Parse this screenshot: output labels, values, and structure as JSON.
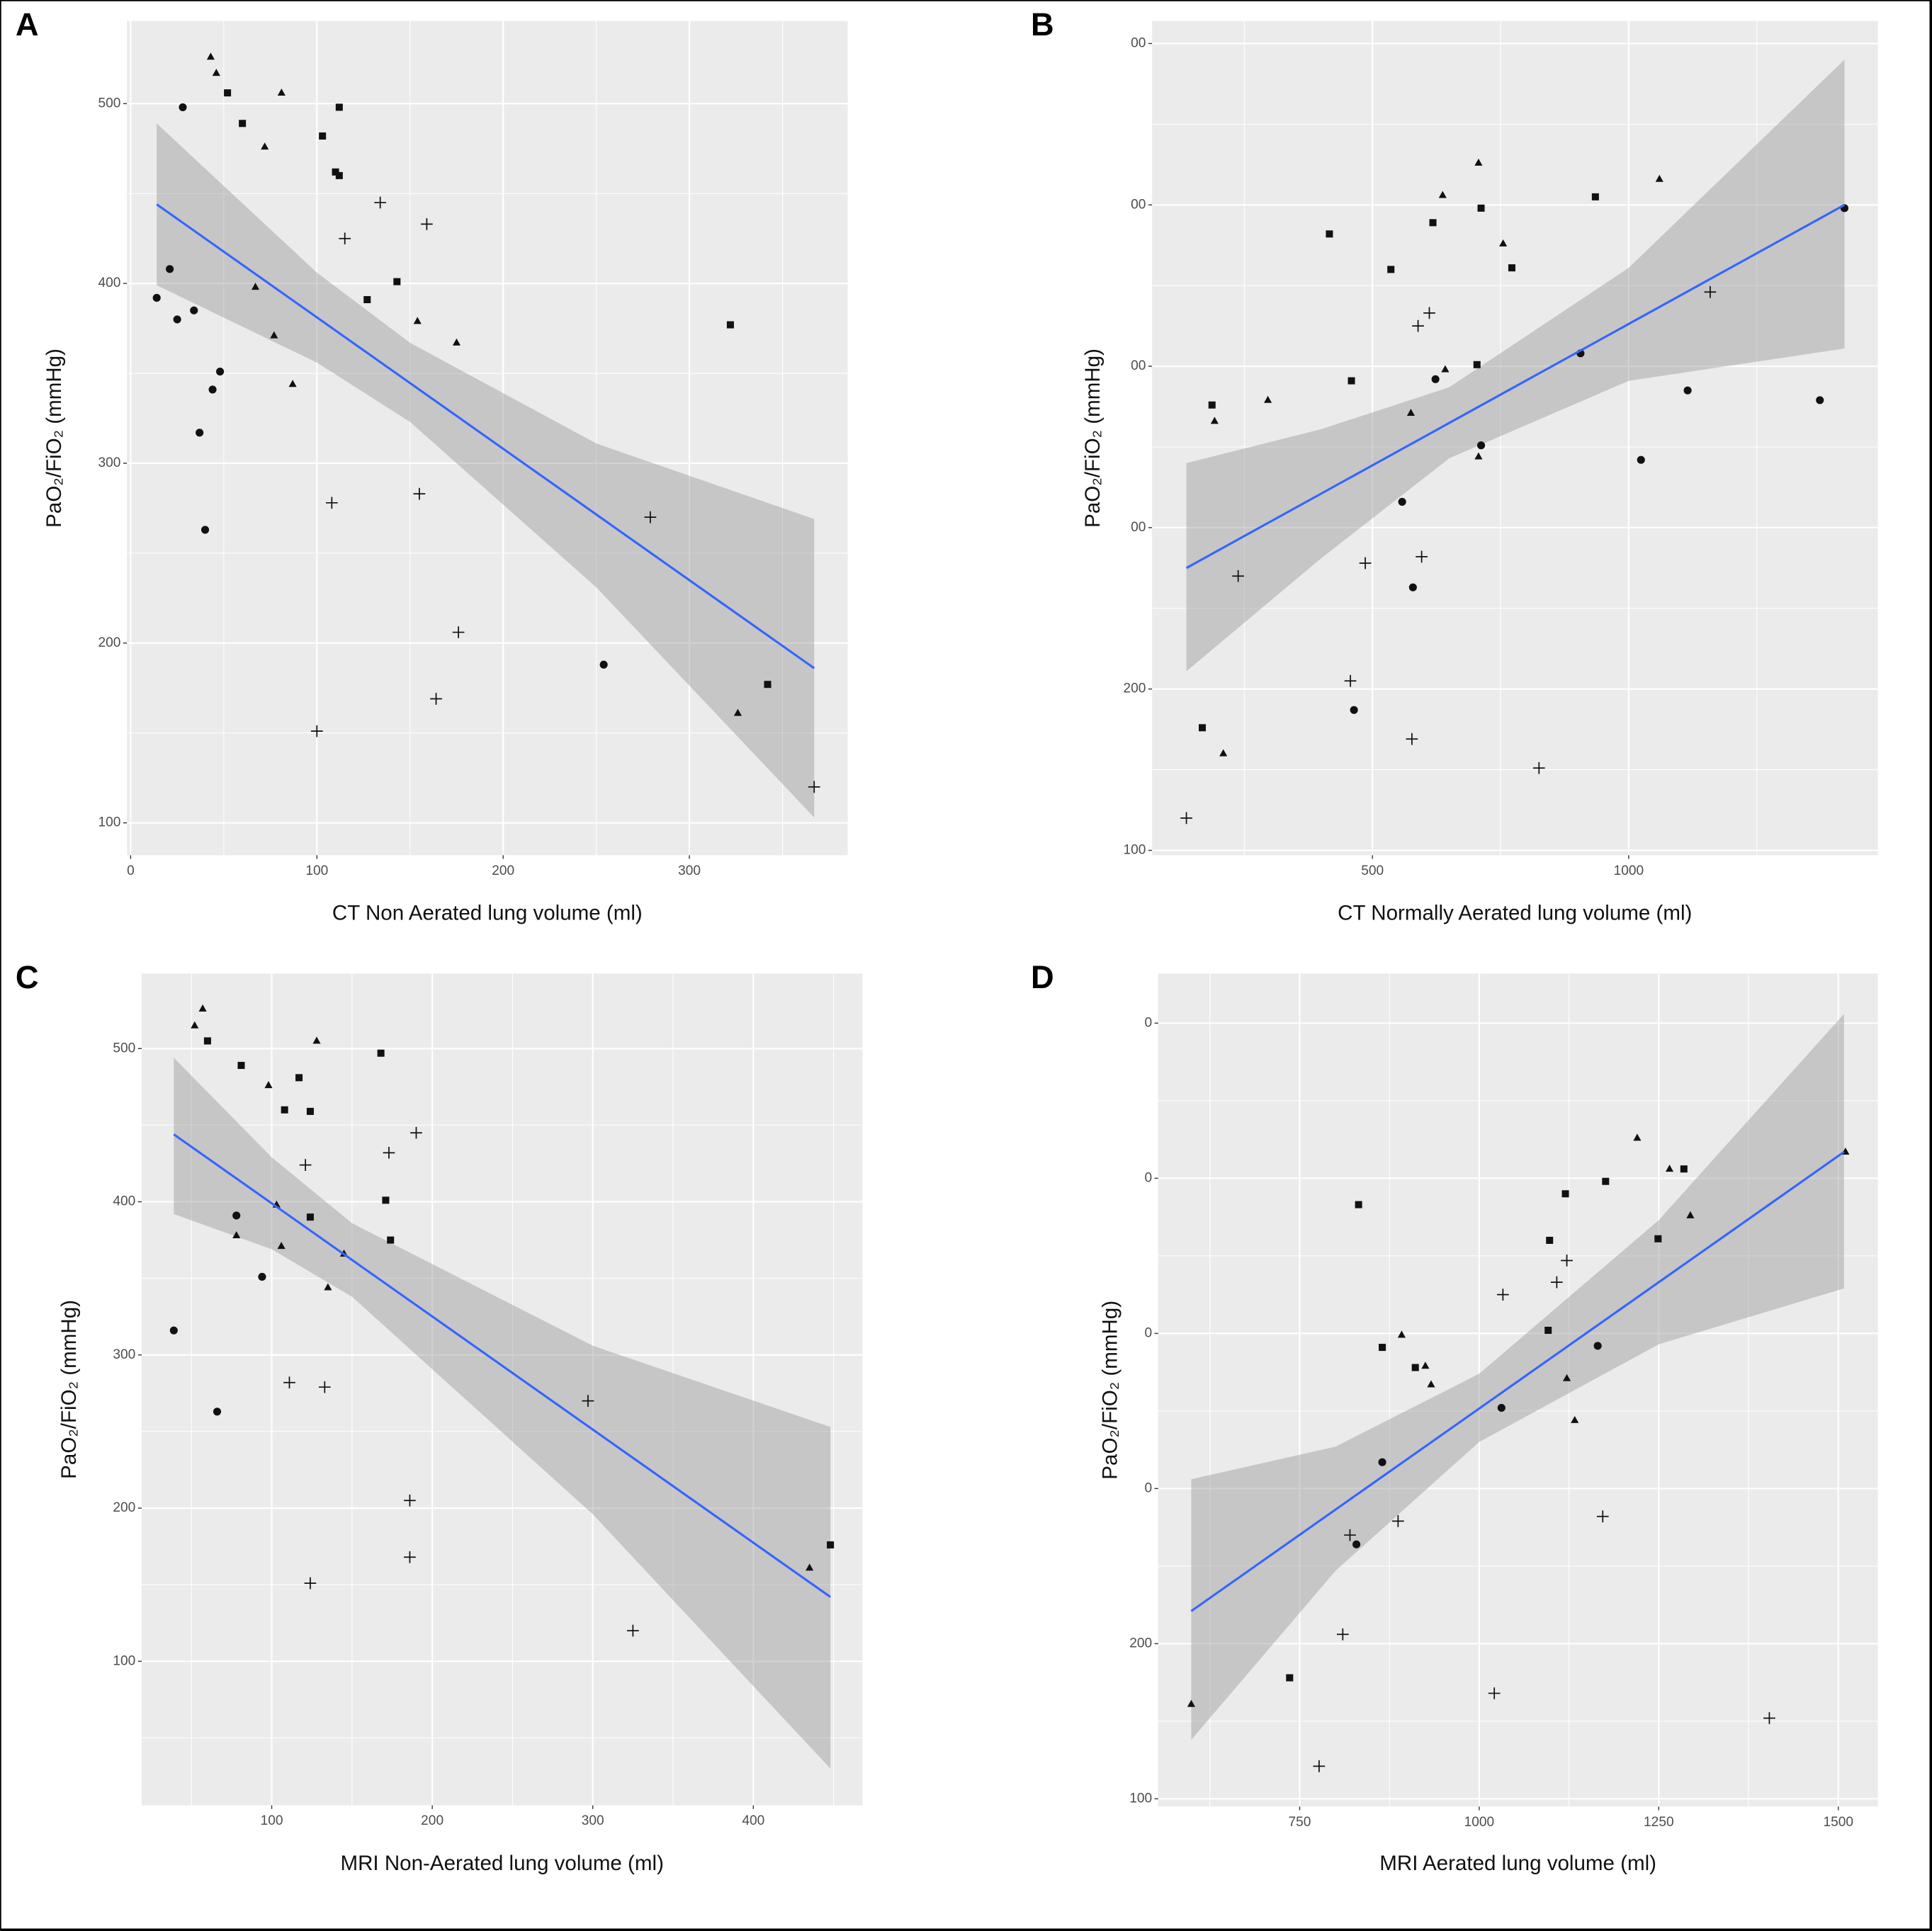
{
  "chart_data": [
    {
      "type": "scatter",
      "panel": "A",
      "xlabel": "CT Non Aerated lung volume (ml)",
      "ylabel": "PaO₂/FiO₂ (mmHg)",
      "xlim": [
        -2,
        385
      ],
      "ylim": [
        82,
        546
      ],
      "xticks": [
        0,
        100,
        200,
        300
      ],
      "yticks": [
        100,
        200,
        300,
        400,
        500
      ],
      "grid": true,
      "series": [
        {
          "marker": "circle",
          "color": "#111111",
          "x": [
            14,
            21,
            25,
            34,
            28,
            48,
            44,
            37,
            40,
            254
          ],
          "values": [
            392,
            408,
            380,
            385,
            498,
            351,
            341,
            317,
            263,
            188
          ]
        },
        {
          "marker": "triangle",
          "color": "#111111",
          "x": [
            43,
            46,
            81,
            72,
            67,
            77,
            87,
            154,
            175,
            326
          ],
          "values": [
            526,
            517,
            506,
            476,
            398,
            371,
            344,
            379,
            367,
            161
          ]
        },
        {
          "marker": "square",
          "color": "#111111",
          "x": [
            52,
            60,
            103,
            112,
            110,
            112,
            127,
            143,
            322,
            342
          ],
          "values": [
            506,
            489,
            482,
            498,
            462,
            460,
            391,
            401,
            377,
            177
          ]
        },
        {
          "marker": "plus",
          "color": "#111111",
          "x": [
            134,
            115,
            159,
            108,
            155,
            176,
            164,
            100,
            279,
            367
          ],
          "values": [
            445,
            425,
            433,
            278,
            283,
            206,
            169,
            151,
            270,
            120
          ]
        }
      ],
      "fit": {
        "color": "#3366ff",
        "x": [
          14,
          367
        ],
        "values": [
          444,
          186
        ]
      },
      "band": {
        "color": "#999999",
        "x": [
          14,
          100,
          150,
          250,
          367
        ],
        "lower": [
          399,
          356,
          323,
          231,
          103
        ],
        "upper": [
          489,
          406,
          367,
          311,
          269
        ]
      }
    },
    {
      "type": "scatter",
      "panel": "B",
      "xlabel": "CT Normally Aerated lung volume (ml)",
      "ylabel": "PaO₂/FiO₂ (mmHg)",
      "xlim": [
        70,
        1486
      ],
      "ylim": [
        97,
        614
      ],
      "xticks": [
        500,
        1000
      ],
      "yticks": [
        100,
        200,
        {
          "value": 300,
          "label": "00"
        },
        {
          "value": 400,
          "label": "00"
        },
        {
          "value": 500,
          "label": "00"
        },
        {
          "value": 600,
          "label": "00"
        }
      ],
      "grid": true,
      "series": [
        {
          "marker": "circle",
          "color": "#111111",
          "x": [
            1421,
            1115,
            1024,
            1373,
            906,
            623,
            712,
            558,
            579,
            464
          ],
          "values": [
            498,
            385,
            342,
            379,
            408,
            392,
            351,
            316,
            263,
            187
          ]
        },
        {
          "marker": "triangle",
          "color": "#111111",
          "x": [
            707,
            637,
            755,
            296,
            192,
            642,
            575,
            707,
            1060,
            209
          ],
          "values": [
            526,
            506,
            476,
            379,
            366,
            398,
            371,
            344,
            516,
            160
          ]
        },
        {
          "marker": "square",
          "color": "#111111",
          "x": [
            416,
            618,
            712,
            536,
            772,
            935,
            704,
            459,
            187,
            168
          ],
          "values": [
            482,
            489,
            498,
            460,
            461,
            505,
            401,
            391,
            376,
            176
          ]
        },
        {
          "marker": "plus",
          "color": "#111111",
          "x": [
            611,
            589,
            1159,
            238,
            486,
            596,
            457,
            577,
            825,
            137
          ],
          "values": [
            433,
            425,
            446,
            270,
            278,
            282,
            205,
            169,
            151,
            120
          ]
        }
      ],
      "fit": {
        "color": "#3366ff",
        "x": [
          137,
          1421
        ],
        "values": [
          275,
          500
        ]
      },
      "band": {
        "color": "#999999",
        "x": [
          137,
          400,
          650,
          1000,
          1421
        ],
        "lower": [
          211,
          281,
          343,
          391,
          411
        ],
        "upper": [
          340,
          361,
          387,
          461,
          590
        ]
      }
    },
    {
      "type": "scatter",
      "panel": "C",
      "xlabel": "MRI Non-Aerated lung volume (ml)",
      "ylabel": "PaO₂/FiO₂ (mmHg)",
      "xlim": [
        19,
        468
      ],
      "ylim": [
        6,
        549
      ],
      "xticks": [
        100,
        200,
        300,
        400
      ],
      "yticks": [
        100,
        200,
        300,
        400,
        500
      ],
      "grid": true,
      "series": [
        {
          "marker": "circle",
          "color": "#111111",
          "x": [
            39,
            66,
            78,
            94
          ],
          "values": [
            316,
            263,
            391,
            351
          ]
        },
        {
          "marker": "triangle",
          "color": "#111111",
          "x": [
            57,
            52,
            98,
            128,
            78,
            103,
            106,
            135,
            145,
            435
          ],
          "values": [
            526,
            515,
            476,
            505,
            378,
            398,
            371,
            344,
            366,
            161
          ]
        },
        {
          "marker": "square",
          "color": "#111111",
          "x": [
            60,
            81,
            108,
            117,
            124,
            124,
            168,
            171,
            174,
            448
          ],
          "values": [
            505,
            489,
            460,
            481,
            459,
            390,
            497,
            401,
            375,
            176
          ]
        },
        {
          "marker": "plus",
          "color": "#111111",
          "x": [
            190,
            173,
            121,
            111,
            133,
            186,
            186,
            124,
            297,
            325
          ],
          "values": [
            445,
            432,
            424,
            282,
            279,
            205,
            168,
            151,
            270,
            120
          ]
        }
      ],
      "fit": {
        "color": "#3366ff",
        "x": [
          39,
          448
        ],
        "values": [
          444,
          142
        ]
      },
      "band": {
        "color": "#999999",
        "x": [
          39,
          100,
          150,
          300,
          448
        ],
        "lower": [
          392,
          369,
          338,
          196,
          30
        ],
        "upper": [
          494,
          429,
          386,
          306,
          253
        ]
      }
    },
    {
      "type": "scatter",
      "panel": "D",
      "xlabel": "MRI Aerated lung volume (ml)",
      "ylabel": "PaO₂/FiO₂ (mmHg)",
      "xlim": [
        553,
        1555
      ],
      "ylim": [
        95,
        632
      ],
      "xticks": [
        750,
        1000,
        1250,
        1500
      ],
      "yticks": [
        100,
        200,
        {
          "value": 300,
          "label": "0"
        },
        {
          "value": 400,
          "label": "0"
        },
        {
          "value": 500,
          "label": "0"
        },
        {
          "value": 600,
          "label": "0"
        }
      ],
      "grid": true,
      "series": [
        {
          "marker": "circle",
          "color": "#111111",
          "x": [
            1031,
            865,
            829,
            1165
          ],
          "values": [
            352,
            317,
            264,
            392
          ]
        },
        {
          "marker": "triangle",
          "color": "#111111",
          "x": [
            1220,
            1265,
            1294,
            892,
            925,
            933,
            1122,
            1133,
            1510,
            599
          ],
          "values": [
            526,
            506,
            476,
            399,
            379,
            367,
            371,
            344,
            517,
            161
          ]
        },
        {
          "marker": "square",
          "color": "#111111",
          "x": [
            832,
            1120,
            1176,
            1285,
            1098,
            1249,
            1096,
            865,
            911,
            736
          ],
          "values": [
            483,
            490,
            498,
            506,
            460,
            461,
            402,
            391,
            378,
            178
          ]
        },
        {
          "marker": "plus",
          "color": "#111111",
          "x": [
            1122,
            1108,
            1033,
            820,
            887,
            1172,
            810,
            1021,
            777,
            1404
          ],
          "values": [
            447,
            433,
            425,
            270,
            279,
            282,
            206,
            168,
            121,
            152
          ]
        }
      ],
      "fit": {
        "color": "#3366ff",
        "x": [
          599,
          1508
        ],
        "values": [
          221,
          517
        ]
      },
      "band": {
        "color": "#999999",
        "x": [
          599,
          800,
          1000,
          1250,
          1508
        ],
        "lower": [
          138,
          247,
          330,
          393,
          429
        ],
        "upper": [
          306,
          327,
          374,
          473,
          606
        ]
      }
    }
  ]
}
